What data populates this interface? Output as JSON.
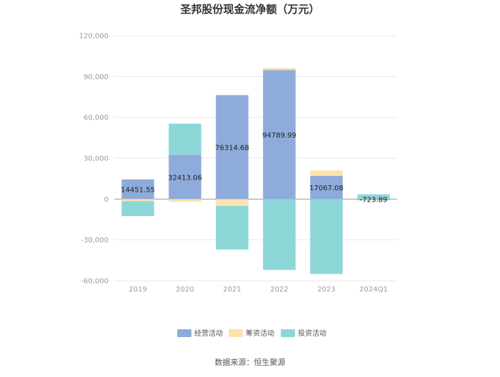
{
  "chart_data": {
    "type": "bar",
    "stacked": true,
    "title": "圣邦股份现金流净额（万元）",
    "categories": [
      "2019",
      "2020",
      "2021",
      "2022",
      "2023",
      "2024Q1"
    ],
    "series": [
      {
        "name": "经营活动",
        "color": "#8eabdb",
        "values": [
          14451.55,
          32413.06,
          76314.68,
          94789.99,
          17067.08,
          -723.89
        ]
      },
      {
        "name": "筹资活动",
        "color": "#fde2ad",
        "values": [
          -1500,
          -2000,
          -5000,
          1500,
          4000,
          -300
        ]
      },
      {
        "name": "投资活动",
        "color": "#8dd7d9",
        "values": [
          -11000,
          23000,
          -32000,
          -52000,
          -55000,
          3500
        ]
      }
    ],
    "data_labels": [
      "14451.55",
      "32413.06",
      "76314.68",
      "94789.99",
      "17067.08",
      "-723.89"
    ],
    "y_ticks": [
      -60000,
      -30000,
      0,
      30000,
      60000,
      90000,
      120000
    ],
    "y_tick_labels": [
      "-60,000",
      "-30,000",
      "0",
      "30,000",
      "60,000",
      "90,000",
      "120,000"
    ],
    "ylim": [
      -60000,
      120000
    ],
    "grid": true,
    "legend_position": "bottom",
    "source": "数据来源：恒生聚源"
  }
}
